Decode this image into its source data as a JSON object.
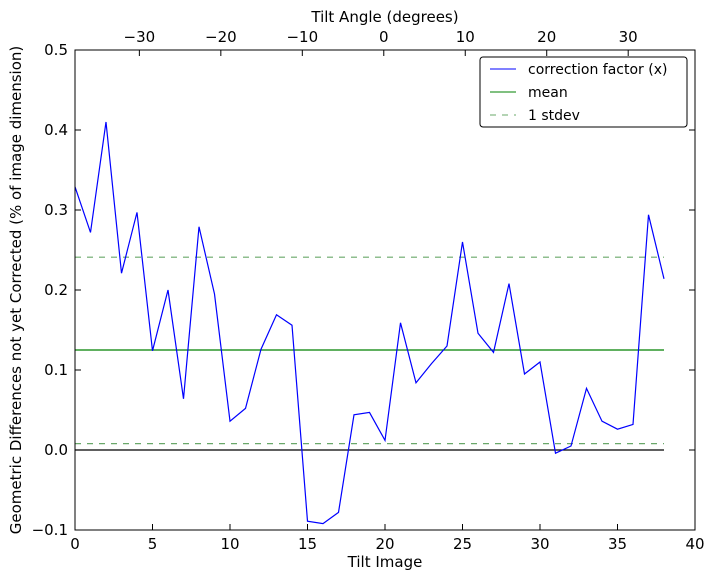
{
  "chart_data": {
    "type": "line",
    "title": "",
    "xlabel": "Tilt Image",
    "ylabel": "Geometric Differences not yet Corrected (% of image dimension)",
    "top_xlabel": "Tilt Angle (degrees)",
    "xlim": [
      0,
      40
    ],
    "ylim": [
      -0.1,
      0.5
    ],
    "top_xlim": [
      -37.9,
      38.2
    ],
    "x_ticks": [
      0,
      5,
      10,
      15,
      20,
      25,
      30,
      35,
      40
    ],
    "y_ticks": [
      -0.1,
      0.0,
      0.1,
      0.2,
      0.3,
      0.4,
      0.5
    ],
    "y_tick_labels": [
      "−0.1",
      "0.0",
      "0.1",
      "0.2",
      "0.3",
      "0.4",
      "0.5"
    ],
    "top_ticks": [
      -30,
      -20,
      -10,
      0,
      10,
      20,
      30
    ],
    "top_tick_labels": [
      "−30",
      "−20",
      "−10",
      "0",
      "10",
      "20",
      "30"
    ],
    "grid": false,
    "legend_position": "top-right",
    "series": [
      {
        "name": "correction factor (x)",
        "color": "#0000ff",
        "style": "solid",
        "x": [
          0,
          1,
          2,
          3,
          4,
          5,
          6,
          7,
          8,
          9,
          10,
          11,
          12,
          13,
          14,
          15,
          16,
          17,
          18,
          19,
          20,
          21,
          22,
          23,
          24,
          25,
          26,
          27,
          28,
          29,
          30,
          31,
          32,
          33,
          34,
          35,
          36,
          37,
          38
        ],
        "values": [
          0.329,
          0.272,
          0.41,
          0.221,
          0.297,
          0.124,
          0.2,
          0.064,
          0.279,
          0.195,
          0.036,
          0.052,
          0.126,
          0.169,
          0.156,
          -0.089,
          -0.092,
          -0.078,
          0.044,
          0.047,
          0.012,
          0.159,
          0.084,
          0.108,
          0.13,
          0.26,
          0.146,
          0.122,
          0.208,
          0.095,
          0.11,
          -0.004,
          0.005,
          0.077,
          0.036,
          0.026,
          0.032,
          0.294,
          0.214
        ]
      },
      {
        "name": "mean",
        "color": "#008000",
        "style": "solid",
        "x": [
          0,
          38
        ],
        "values": [
          0.125,
          0.125
        ]
      },
      {
        "name": "1 stdev",
        "color": "#6aa86a",
        "style": "dashed",
        "x": [
          0,
          38
        ],
        "values": [
          0.241,
          0.241
        ]
      },
      {
        "name": "1 stdev lower",
        "color": "#6aa86a",
        "style": "dashed",
        "x": [
          0,
          38
        ],
        "values": [
          0.008,
          0.008
        ]
      },
      {
        "name": "zero",
        "color": "#000000",
        "style": "solid",
        "x": [
          0,
          38
        ],
        "values": [
          0,
          0
        ]
      }
    ],
    "legend": [
      "correction factor (x)",
      "mean",
      "1 stdev"
    ]
  }
}
